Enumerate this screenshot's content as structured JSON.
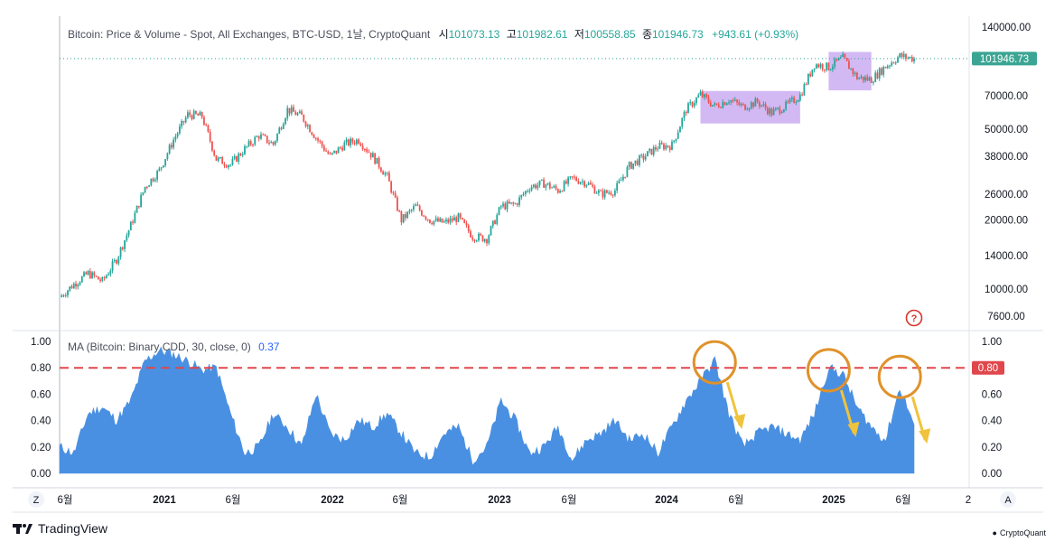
{
  "price_panel": {
    "legend_prefix": "Bitcoin: Price & Volume - Spot, All Exchanges, BTC-USD, 1날, CryptoQuant",
    "open_label": "시",
    "open": "101073.13",
    "high_label": "고",
    "high": "101982.61",
    "low_label": "저",
    "low": "100558.85",
    "close_label": "종",
    "close": "101946.73",
    "change": "+943.61 (+0.93%)",
    "last_price_badge": "101946.73",
    "y_ticks": [
      "140000.00",
      "70000.00",
      "50000.00",
      "38000.00",
      "26000.00",
      "20000.00",
      "14000.00",
      "10000.00",
      "7600.00"
    ],
    "help_icon": "?"
  },
  "indicator_panel": {
    "legend": "MA (Bitcoin: Binary CDD, 30, close, 0)",
    "legend_value": "0.37",
    "threshold_badge": "0.80",
    "y_ticks_left": [
      "1.00",
      "0.80",
      "0.60",
      "0.40",
      "0.20",
      "0.00"
    ],
    "y_ticks_right": [
      "1.00",
      "0.80",
      "0.60",
      "0.40",
      "0.20",
      "0.00"
    ]
  },
  "x_axis": {
    "zoom_button": "Z",
    "auto_button": "A",
    "labels": [
      {
        "text": "6월",
        "bold": false
      },
      {
        "text": "2021",
        "bold": true
      },
      {
        "text": "6월",
        "bold": false
      },
      {
        "text": "2022",
        "bold": true
      },
      {
        "text": "6월",
        "bold": false
      },
      {
        "text": "2023",
        "bold": true
      },
      {
        "text": "6월",
        "bold": false
      },
      {
        "text": "2024",
        "bold": true
      },
      {
        "text": "6월",
        "bold": false
      },
      {
        "text": "2025",
        "bold": true
      },
      {
        "text": "6월",
        "bold": false
      },
      {
        "text": "2",
        "bold": false
      }
    ]
  },
  "branding": {
    "tradingview": "TradingView",
    "cryptoquant": "CryptoQuant"
  },
  "colors": {
    "up": "#26a69a",
    "down": "#ef5350",
    "area": "#4a90e2",
    "threshold": "#e0474c",
    "highlight": "#c7a8f0",
    "circle": "#e0922a",
    "arrow": "#f0c33c"
  },
  "chart_data": [
    {
      "type": "candlestick",
      "title": "Bitcoin: Price & Volume - Spot, All Exchanges, BTC-USD, 1날, CryptoQuant",
      "scale": "log",
      "ylim": [
        7000,
        140000
      ],
      "x": [
        "2020-06",
        "2020-07",
        "2020-08",
        "2020-09",
        "2020-10",
        "2020-11",
        "2020-12",
        "2021-01",
        "2021-02",
        "2021-03",
        "2021-04",
        "2021-05",
        "2021-06",
        "2021-07",
        "2021-08",
        "2021-09",
        "2021-10",
        "2021-11",
        "2021-12",
        "2022-01",
        "2022-02",
        "2022-03",
        "2022-04",
        "2022-05",
        "2022-06",
        "2022-07",
        "2022-08",
        "2022-09",
        "2022-10",
        "2022-11",
        "2022-12",
        "2023-01",
        "2023-02",
        "2023-03",
        "2023-04",
        "2023-05",
        "2023-06",
        "2023-07",
        "2023-08",
        "2023-09",
        "2023-10",
        "2023-11",
        "2023-12",
        "2024-01",
        "2024-02",
        "2024-03",
        "2024-04",
        "2024-05",
        "2024-06",
        "2024-07",
        "2024-08",
        "2024-09",
        "2024-10",
        "2024-11",
        "2024-12",
        "2025-01",
        "2025-02",
        "2025-03",
        "2025-04",
        "2025-05",
        "2025-06"
      ],
      "close": [
        9200,
        10500,
        11700,
        10800,
        13500,
        19000,
        28000,
        33000,
        45000,
        58000,
        57000,
        37000,
        35000,
        41000,
        47000,
        43000,
        61000,
        57000,
        46000,
        38000,
        43000,
        45000,
        38000,
        31000,
        20000,
        23000,
        20000,
        19500,
        20500,
        17000,
        16600,
        23000,
        23500,
        28000,
        29000,
        27000,
        30500,
        29200,
        26000,
        27000,
        34500,
        37700,
        42000,
        42500,
        61000,
        71000,
        63000,
        67500,
        62700,
        66000,
        59000,
        63300,
        70300,
        96400,
        93400,
        102400,
        84300,
        82500,
        94200,
        104600,
        101947
      ],
      "last_close": 101946.73,
      "highlight_ranges": [
        {
          "from": "2024-03",
          "to": "2024-10",
          "low": 53000,
          "high": 73500
        },
        {
          "from": "2024-12",
          "to": "2025-03",
          "low": 74000,
          "high": 109000
        }
      ]
    },
    {
      "type": "area",
      "title": "MA (Bitcoin: Binary CDD, 30, close, 0)",
      "ylim": [
        0,
        1
      ],
      "threshold": 0.8,
      "last_value": 0.37,
      "x": [
        "2020-06",
        "2020-07",
        "2020-08",
        "2020-09",
        "2020-10",
        "2020-11",
        "2020-12",
        "2021-01",
        "2021-02",
        "2021-03",
        "2021-04",
        "2021-05",
        "2021-06",
        "2021-07",
        "2021-08",
        "2021-09",
        "2021-10",
        "2021-11",
        "2021-12",
        "2022-01",
        "2022-02",
        "2022-03",
        "2022-04",
        "2022-05",
        "2022-06",
        "2022-07",
        "2022-08",
        "2022-09",
        "2022-10",
        "2022-11",
        "2022-12",
        "2023-01",
        "2023-02",
        "2023-03",
        "2023-04",
        "2023-05",
        "2023-06",
        "2023-07",
        "2023-08",
        "2023-09",
        "2023-10",
        "2023-11",
        "2023-12",
        "2024-01",
        "2024-02",
        "2024-03",
        "2024-04",
        "2024-05",
        "2024-06",
        "2024-07",
        "2024-08",
        "2024-09",
        "2024-10",
        "2024-11",
        "2024-12",
        "2025-01",
        "2025-02",
        "2025-03",
        "2025-04",
        "2025-05",
        "2025-06"
      ],
      "values": [
        0.2,
        0.15,
        0.45,
        0.5,
        0.4,
        0.55,
        0.85,
        0.93,
        0.9,
        0.85,
        0.78,
        0.8,
        0.45,
        0.15,
        0.2,
        0.45,
        0.35,
        0.2,
        0.6,
        0.3,
        0.25,
        0.4,
        0.35,
        0.45,
        0.3,
        0.15,
        0.12,
        0.3,
        0.35,
        0.1,
        0.2,
        0.55,
        0.4,
        0.15,
        0.2,
        0.35,
        0.1,
        0.25,
        0.3,
        0.4,
        0.25,
        0.3,
        0.15,
        0.35,
        0.55,
        0.7,
        0.86,
        0.45,
        0.2,
        0.3,
        0.35,
        0.3,
        0.25,
        0.45,
        0.8,
        0.75,
        0.5,
        0.35,
        0.25,
        0.65,
        0.37
      ],
      "annotations": [
        {
          "type": "circle",
          "at": "2024-04"
        },
        {
          "type": "circle",
          "at": "2024-12"
        },
        {
          "type": "circle",
          "at": "2025-05"
        }
      ]
    }
  ]
}
